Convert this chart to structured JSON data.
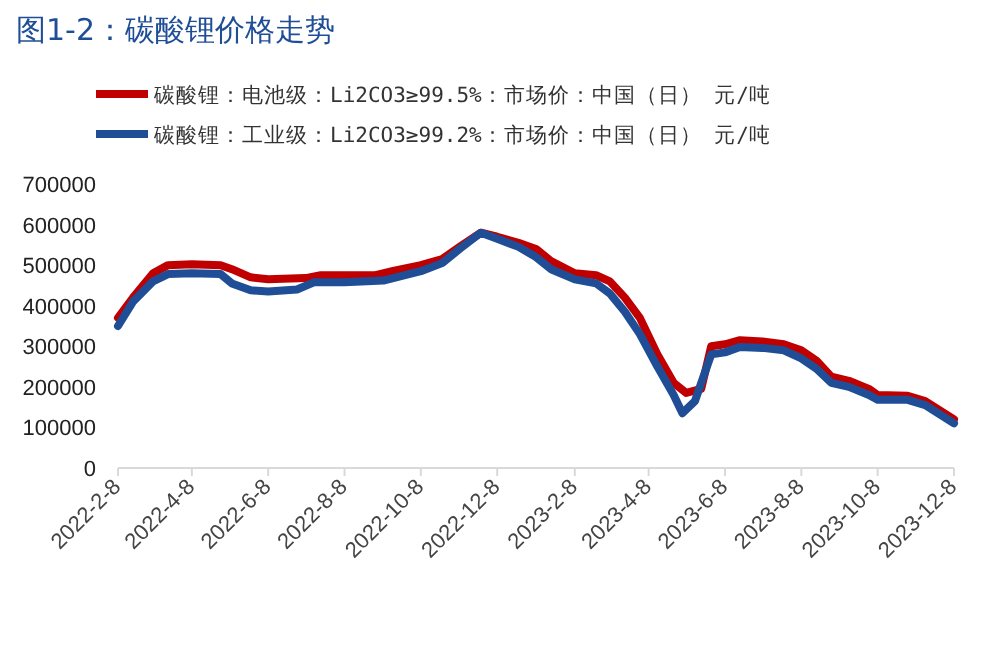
{
  "chart_data": {
    "type": "line",
    "title": "图1-2：碳酸锂价格走势",
    "xlim": [
      "2022-02-08",
      "2023-12-08"
    ],
    "xticks": [
      {
        "value": "2022-02-08",
        "label": "2022-2-8"
      },
      {
        "value": "2022-04-08",
        "label": "2022-4-8"
      },
      {
        "value": "2022-06-08",
        "label": "2022-6-8"
      },
      {
        "value": "2022-08-08",
        "label": "2022-8-8"
      },
      {
        "value": "2022-10-08",
        "label": "2022-10-8"
      },
      {
        "value": "2022-12-08",
        "label": "2022-12-8"
      },
      {
        "value": "2023-02-08",
        "label": "2023-2-8"
      },
      {
        "value": "2023-04-08",
        "label": "2023-4-8"
      },
      {
        "value": "2023-06-08",
        "label": "2023-6-8"
      },
      {
        "value": "2023-08-08",
        "label": "2023-8-8"
      },
      {
        "value": "2023-10-08",
        "label": "2023-10-8"
      },
      {
        "value": "2023-12-08",
        "label": "2023-12-8"
      }
    ],
    "ylim": [
      0,
      700000
    ],
    "yticks": [
      0,
      100000,
      200000,
      300000,
      400000,
      500000,
      600000,
      700000
    ],
    "grid": false,
    "legend": "top",
    "marker": "none",
    "line_style": "solid",
    "series": [
      {
        "name": "碳酸锂：电池级：Li2CO3≥99.5%：市场价：中国（日） 元/吨",
        "color": "#c00000",
        "x": [
          "2022-02-08",
          "2022-02-20",
          "2022-03-08",
          "2022-03-20",
          "2022-04-08",
          "2022-05-01",
          "2022-05-10",
          "2022-05-25",
          "2022-06-08",
          "2022-07-08",
          "2022-07-20",
          "2022-08-08",
          "2022-09-01",
          "2022-09-15",
          "2022-10-08",
          "2022-10-25",
          "2022-11-08",
          "2022-11-25",
          "2022-12-08",
          "2022-12-25",
          "2023-01-08",
          "2023-01-20",
          "2023-02-08",
          "2023-02-25",
          "2023-03-08",
          "2023-03-20",
          "2023-04-01",
          "2023-04-15",
          "2023-04-28",
          "2023-05-08",
          "2023-05-20",
          "2023-05-28",
          "2023-06-08",
          "2023-06-20",
          "2023-07-08",
          "2023-07-25",
          "2023-08-08",
          "2023-08-20",
          "2023-09-01",
          "2023-09-15",
          "2023-10-01",
          "2023-10-08",
          "2023-11-01",
          "2023-11-15",
          "2023-12-08"
        ],
        "values": [
          370000,
          420000,
          480000,
          500000,
          502000,
          500000,
          490000,
          470000,
          465000,
          468000,
          475000,
          475000,
          475000,
          485000,
          500000,
          515000,
          545000,
          580000,
          570000,
          555000,
          540000,
          510000,
          480000,
          475000,
          460000,
          420000,
          370000,
          280000,
          210000,
          185000,
          195000,
          300000,
          305000,
          315000,
          312000,
          305000,
          290000,
          265000,
          225000,
          215000,
          195000,
          180000,
          178000,
          165000,
          120000
        ]
      },
      {
        "name": "碳酸锂：工业级：Li2CO3≥99.2%：市场价：中国（日） 元/吨",
        "color": "#1f4e96",
        "x": [
          "2022-02-08",
          "2022-02-20",
          "2022-03-08",
          "2022-03-20",
          "2022-04-08",
          "2022-05-01",
          "2022-05-10",
          "2022-05-25",
          "2022-06-08",
          "2022-07-01",
          "2022-07-15",
          "2022-08-08",
          "2022-09-08",
          "2022-10-08",
          "2022-10-25",
          "2022-11-08",
          "2022-11-25",
          "2022-12-08",
          "2022-12-25",
          "2023-01-08",
          "2023-01-20",
          "2023-02-08",
          "2023-02-25",
          "2023-03-08",
          "2023-03-20",
          "2023-04-01",
          "2023-04-15",
          "2023-04-28",
          "2023-05-05",
          "2023-05-15",
          "2023-05-28",
          "2023-06-08",
          "2023-06-20",
          "2023-07-08",
          "2023-07-25",
          "2023-08-08",
          "2023-08-20",
          "2023-09-01",
          "2023-09-15",
          "2023-10-01",
          "2023-10-08",
          "2023-11-01",
          "2023-11-15",
          "2023-12-08"
        ],
        "values": [
          350000,
          410000,
          460000,
          478000,
          480000,
          478000,
          455000,
          438000,
          435000,
          440000,
          458000,
          458000,
          462000,
          485000,
          505000,
          540000,
          580000,
          565000,
          545000,
          520000,
          490000,
          465000,
          455000,
          430000,
          385000,
          330000,
          250000,
          180000,
          135000,
          165000,
          280000,
          285000,
          298000,
          296000,
          290000,
          270000,
          245000,
          210000,
          200000,
          180000,
          168000,
          168000,
          155000,
          110000
        ]
      }
    ]
  }
}
